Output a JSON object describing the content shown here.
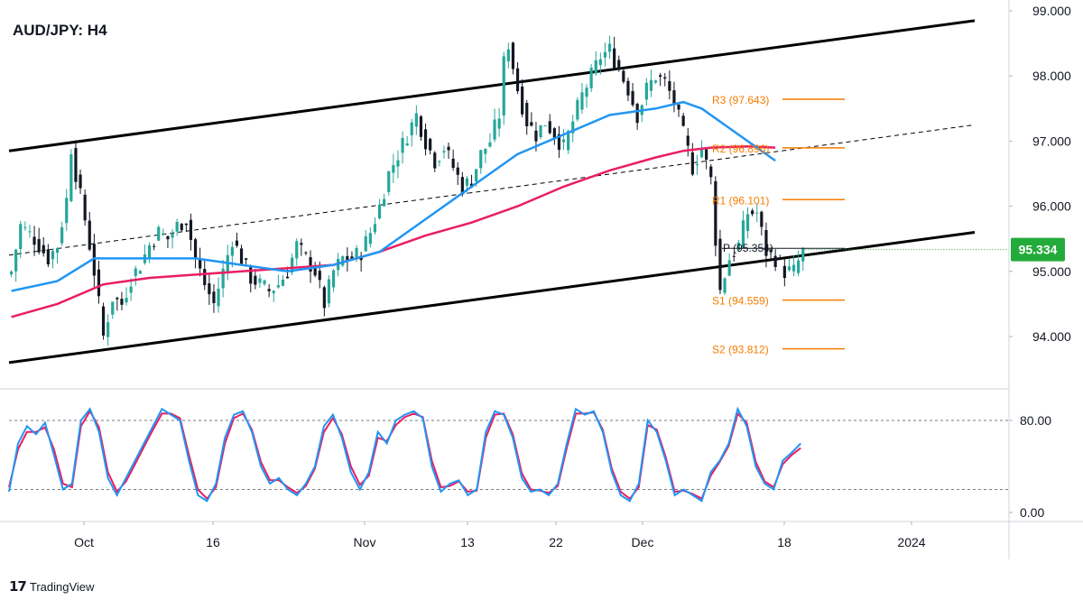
{
  "title": "AUD/JPY: H4",
  "brand": {
    "logo_icon": "tradingview-logo-icon",
    "name": "TradingView"
  },
  "colors": {
    "up": "#26a69a",
    "down": "#131722",
    "sma_fast": "#2196f3",
    "sma_slow": "#e91e63",
    "pivot": "#f57c00",
    "price_badge": "#22ab3a",
    "stoch_k": "#2196f3",
    "stoch_d": "#e91e63"
  },
  "chart_data": [
    {
      "type": "candlestick",
      "title": "AUD/JPY: H4",
      "x_ticks": [
        "Oct",
        "16",
        "Nov",
        "13",
        "22",
        "Dec",
        "18",
        "2024"
      ],
      "y_ticks": [
        "99.000",
        "98.000",
        "97.000",
        "96.000",
        "95.000",
        "94.000"
      ],
      "ylim": [
        93.0,
        99.0
      ],
      "last_price": "95.334",
      "pivot_levels": [
        {
          "label": "R3",
          "value_text": "97.643",
          "value": 97.643
        },
        {
          "label": "R2",
          "value_text": "96.896",
          "value": 96.896
        },
        {
          "label": "R1",
          "value_text": "96.101",
          "value": 96.101
        },
        {
          "label": "P",
          "value_text": "95.354",
          "value": 95.354
        },
        {
          "label": "S1",
          "value_text": "94.559",
          "value": 94.559
        },
        {
          "label": "S2",
          "value_text": "93.812",
          "value": 93.812
        }
      ],
      "channel": {
        "upper": {
          "from": [
            0,
            96.85
          ],
          "to": [
            1.0,
            98.85
          ]
        },
        "middle": {
          "from": [
            0,
            95.25
          ],
          "to": [
            1.0,
            97.25
          ]
        },
        "lower": {
          "from": [
            0,
            93.6
          ],
          "to": [
            1.0,
            95.6
          ]
        }
      },
      "price_path": [
        [
          0,
          95.0
        ],
        [
          2,
          95.7
        ],
        [
          5,
          95.5
        ],
        [
          8,
          95.2
        ],
        [
          10,
          95.4
        ],
        [
          12,
          96.1
        ],
        [
          13,
          96.9
        ],
        [
          14,
          96.5
        ],
        [
          16,
          95.8
        ],
        [
          18,
          95.0
        ],
        [
          20,
          94.0
        ],
        [
          22,
          94.6
        ],
        [
          24,
          94.5
        ],
        [
          26,
          94.9
        ],
        [
          28,
          95.1
        ],
        [
          30,
          95.4
        ],
        [
          32,
          95.6
        ],
        [
          34,
          95.5
        ],
        [
          36,
          95.7
        ],
        [
          38,
          95.8
        ],
        [
          40,
          95.2
        ],
        [
          42,
          94.8
        ],
        [
          44,
          94.5
        ],
        [
          46,
          95.0
        ],
        [
          48,
          95.5
        ],
        [
          50,
          95.2
        ],
        [
          52,
          94.9
        ],
        [
          54,
          94.8
        ],
        [
          56,
          94.7
        ],
        [
          58,
          94.8
        ],
        [
          60,
          95.0
        ],
        [
          62,
          95.4
        ],
        [
          64,
          95.2
        ],
        [
          66,
          95.0
        ],
        [
          68,
          94.5
        ],
        [
          70,
          95.0
        ],
        [
          72,
          95.2
        ],
        [
          74,
          95.2
        ],
        [
          76,
          95.3
        ],
        [
          78,
          95.6
        ],
        [
          80,
          96.0
        ],
        [
          82,
          96.5
        ],
        [
          84,
          96.8
        ],
        [
          86,
          97.1
        ],
        [
          88,
          97.4
        ],
        [
          90,
          97.0
        ],
        [
          92,
          96.7
        ],
        [
          94,
          96.9
        ],
        [
          96,
          96.6
        ],
        [
          98,
          96.3
        ],
        [
          100,
          96.4
        ],
        [
          102,
          96.8
        ],
        [
          104,
          97.0
        ],
        [
          106,
          97.4
        ],
        [
          107,
          98.2
        ],
        [
          108,
          98.5
        ],
        [
          110,
          97.8
        ],
        [
          112,
          97.3
        ],
        [
          114,
          97.1
        ],
        [
          116,
          97.3
        ],
        [
          118,
          97.1
        ],
        [
          120,
          96.9
        ],
        [
          122,
          97.3
        ],
        [
          124,
          97.7
        ],
        [
          126,
          98.0
        ],
        [
          128,
          98.3
        ],
        [
          130,
          98.4
        ],
        [
          132,
          98.1
        ],
        [
          134,
          97.8
        ],
        [
          136,
          97.4
        ],
        [
          138,
          97.8
        ],
        [
          140,
          98.0
        ],
        [
          142,
          97.9
        ],
        [
          144,
          97.6
        ],
        [
          146,
          97.1
        ],
        [
          148,
          96.6
        ],
        [
          150,
          96.9
        ],
        [
          152,
          96.4
        ],
        [
          153,
          95.5
        ],
        [
          154,
          94.7
        ],
        [
          156,
          95.2
        ],
        [
          158,
          95.4
        ],
        [
          160,
          95.9
        ],
        [
          162,
          95.9
        ],
        [
          164,
          95.3
        ],
        [
          166,
          95.2
        ],
        [
          168,
          95.0
        ],
        [
          170,
          95.0
        ],
        [
          172,
          95.3
        ]
      ],
      "sma_fast_path": [
        [
          0,
          94.7
        ],
        [
          10,
          94.85
        ],
        [
          18,
          95.2
        ],
        [
          30,
          95.2
        ],
        [
          40,
          95.2
        ],
        [
          50,
          95.1
        ],
        [
          60,
          95.0
        ],
        [
          70,
          95.1
        ],
        [
          80,
          95.3
        ],
        [
          90,
          95.8
        ],
        [
          100,
          96.3
        ],
        [
          110,
          96.8
        ],
        [
          120,
          97.1
        ],
        [
          130,
          97.4
        ],
        [
          140,
          97.5
        ],
        [
          146,
          97.6
        ],
        [
          150,
          97.5
        ],
        [
          156,
          97.2
        ],
        [
          162,
          96.9
        ],
        [
          166,
          96.7
        ]
      ],
      "sma_slow_path": [
        [
          0,
          94.3
        ],
        [
          10,
          94.5
        ],
        [
          20,
          94.8
        ],
        [
          30,
          94.9
        ],
        [
          40,
          94.95
        ],
        [
          50,
          95.0
        ],
        [
          60,
          95.05
        ],
        [
          70,
          95.1
        ],
        [
          80,
          95.3
        ],
        [
          90,
          95.55
        ],
        [
          100,
          95.75
        ],
        [
          110,
          96.0
        ],
        [
          120,
          96.3
        ],
        [
          130,
          96.55
        ],
        [
          140,
          96.75
        ],
        [
          146,
          96.85
        ],
        [
          152,
          96.9
        ],
        [
          160,
          96.92
        ],
        [
          166,
          96.9
        ]
      ]
    },
    {
      "type": "line",
      "name": "stochastic",
      "y_ticks": [
        "80.00",
        "0.00"
      ],
      "ylim": [
        0,
        100
      ],
      "levels": [
        80,
        20
      ],
      "k_values": [
        18,
        60,
        75,
        68,
        78,
        50,
        20,
        25,
        80,
        90,
        70,
        30,
        15,
        30,
        45,
        60,
        75,
        90,
        85,
        80,
        45,
        15,
        10,
        25,
        65,
        85,
        88,
        70,
        40,
        25,
        30,
        20,
        15,
        25,
        40,
        75,
        85,
        65,
        35,
        20,
        35,
        70,
        60,
        80,
        85,
        88,
        82,
        40,
        18,
        25,
        28,
        15,
        20,
        70,
        88,
        85,
        65,
        30,
        18,
        20,
        15,
        25,
        60,
        90,
        85,
        88,
        70,
        35,
        15,
        10,
        25,
        80,
        70,
        45,
        15,
        20,
        15,
        10,
        35,
        45,
        60,
        90,
        75,
        40,
        25,
        20,
        45,
        52,
        60
      ],
      "d_values": [
        22,
        55,
        70,
        70,
        74,
        55,
        25,
        22,
        75,
        88,
        74,
        35,
        18,
        27,
        42,
        57,
        72,
        86,
        86,
        82,
        50,
        20,
        12,
        22,
        60,
        82,
        86,
        72,
        44,
        28,
        28,
        22,
        17,
        23,
        38,
        70,
        82,
        68,
        40,
        24,
        32,
        65,
        62,
        76,
        83,
        86,
        83,
        45,
        22,
        23,
        27,
        18,
        19,
        65,
        85,
        86,
        68,
        34,
        20,
        19,
        17,
        23,
        56,
        86,
        86,
        87,
        72,
        38,
        18,
        12,
        22,
        76,
        72,
        48,
        18,
        19,
        16,
        12,
        32,
        44,
        58,
        86,
        78,
        44,
        27,
        22,
        42,
        50,
        56
      ]
    }
  ]
}
